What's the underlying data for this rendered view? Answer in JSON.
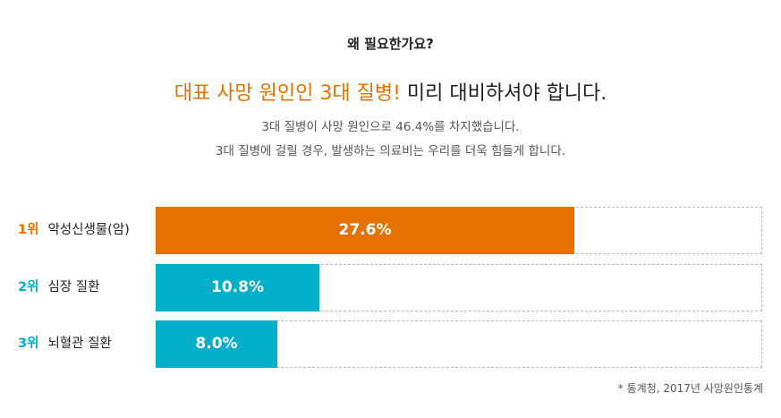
{
  "header": {
    "question": "왜 필요한가요?",
    "headline_accent": "대표 사망 원인인 3대 질병!",
    "headline_rest": " 미리 대비하셔야 합니다.",
    "sub_line1": "3대 질병이 사망 원인으로 46.4%를 차지했습니다.",
    "sub_line2": "3대 질병에 걸릴 경우, 발생하는 의료비는 우리를 더욱 힘들게 합니다."
  },
  "colors": {
    "accent": "#e57200",
    "secondary": "#00b0c8"
  },
  "chart_data": {
    "type": "bar",
    "orientation": "horizontal",
    "categories": [
      "악성신생물(암)",
      "심장 질환",
      "뇌혈관 질환"
    ],
    "ranks": [
      "1위",
      "2위",
      "3위"
    ],
    "values": [
      27.6,
      10.8,
      8.0
    ],
    "value_labels": [
      "27.6%",
      "10.8%",
      "8.0%"
    ],
    "bar_colors": [
      "#e57200",
      "#00b0c8",
      "#00b0c8"
    ],
    "xlim": [
      0,
      40
    ],
    "grid": false
  },
  "footnote": "* 통계청, 2017년 사망원인통계"
}
